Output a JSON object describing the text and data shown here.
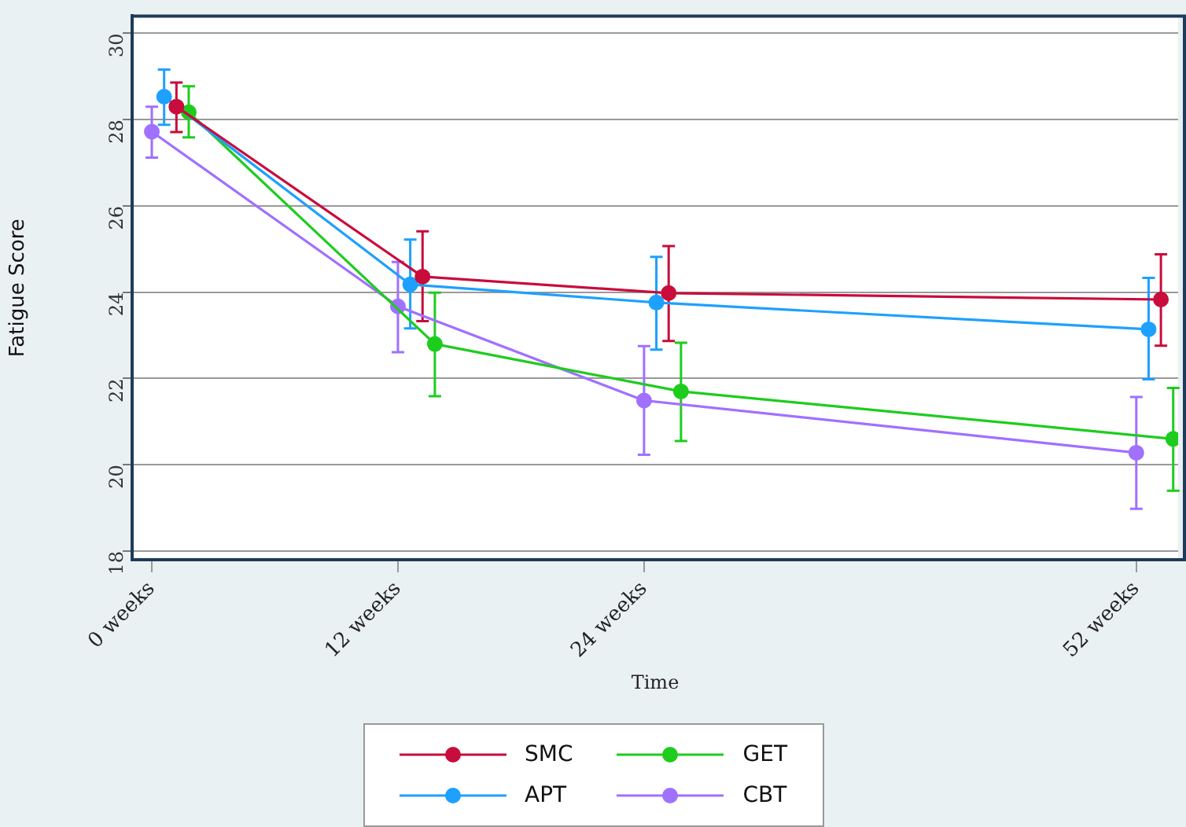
{
  "chart_data": {
    "type": "line",
    "xlabel": "Time",
    "ylabel": "Fatigue Score",
    "categories": [
      "0 weeks",
      "12 weeks",
      "24 weeks",
      null,
      "52 weeks"
    ],
    "ylim": [
      17.8,
      30.4
    ],
    "yticks": [
      18,
      20,
      22,
      24,
      26,
      28,
      30
    ],
    "grid": "y",
    "legend": "bottom",
    "marker": "circle",
    "line_style": "solid",
    "series": [
      {
        "name": "SMC",
        "color": "#c80c3c",
        "values": [
          28.3,
          24.36,
          23.98,
          null,
          23.83
        ],
        "errors": [
          [
            27.71,
            28.86
          ],
          [
            23.33,
            25.41
          ],
          [
            22.87,
            25.07
          ],
          null,
          [
            22.76,
            24.88
          ]
        ]
      },
      {
        "name": "APT",
        "color": "#1ea0ff",
        "values": [
          28.53,
          24.18,
          23.76,
          null,
          23.14
        ],
        "errors": [
          [
            27.88,
            29.16
          ],
          [
            23.16,
            25.22
          ],
          [
            22.67,
            24.82
          ],
          null,
          [
            21.98,
            24.33
          ]
        ]
      },
      {
        "name": "GET",
        "color": "#1ecc1e",
        "values": [
          28.17,
          22.8,
          21.7,
          null,
          20.6
        ],
        "errors": [
          [
            27.59,
            28.77
          ],
          [
            21.59,
            23.99
          ],
          [
            20.55,
            22.83
          ],
          null,
          [
            19.4,
            21.78
          ]
        ]
      },
      {
        "name": "CBT",
        "color": "#a070ff",
        "values": [
          27.72,
          23.67,
          21.49,
          null,
          20.28
        ],
        "errors": [
          [
            27.12,
            28.3
          ],
          [
            22.61,
            24.7
          ],
          [
            20.23,
            22.75
          ],
          null,
          [
            18.98,
            21.57
          ]
        ]
      }
    ]
  }
}
